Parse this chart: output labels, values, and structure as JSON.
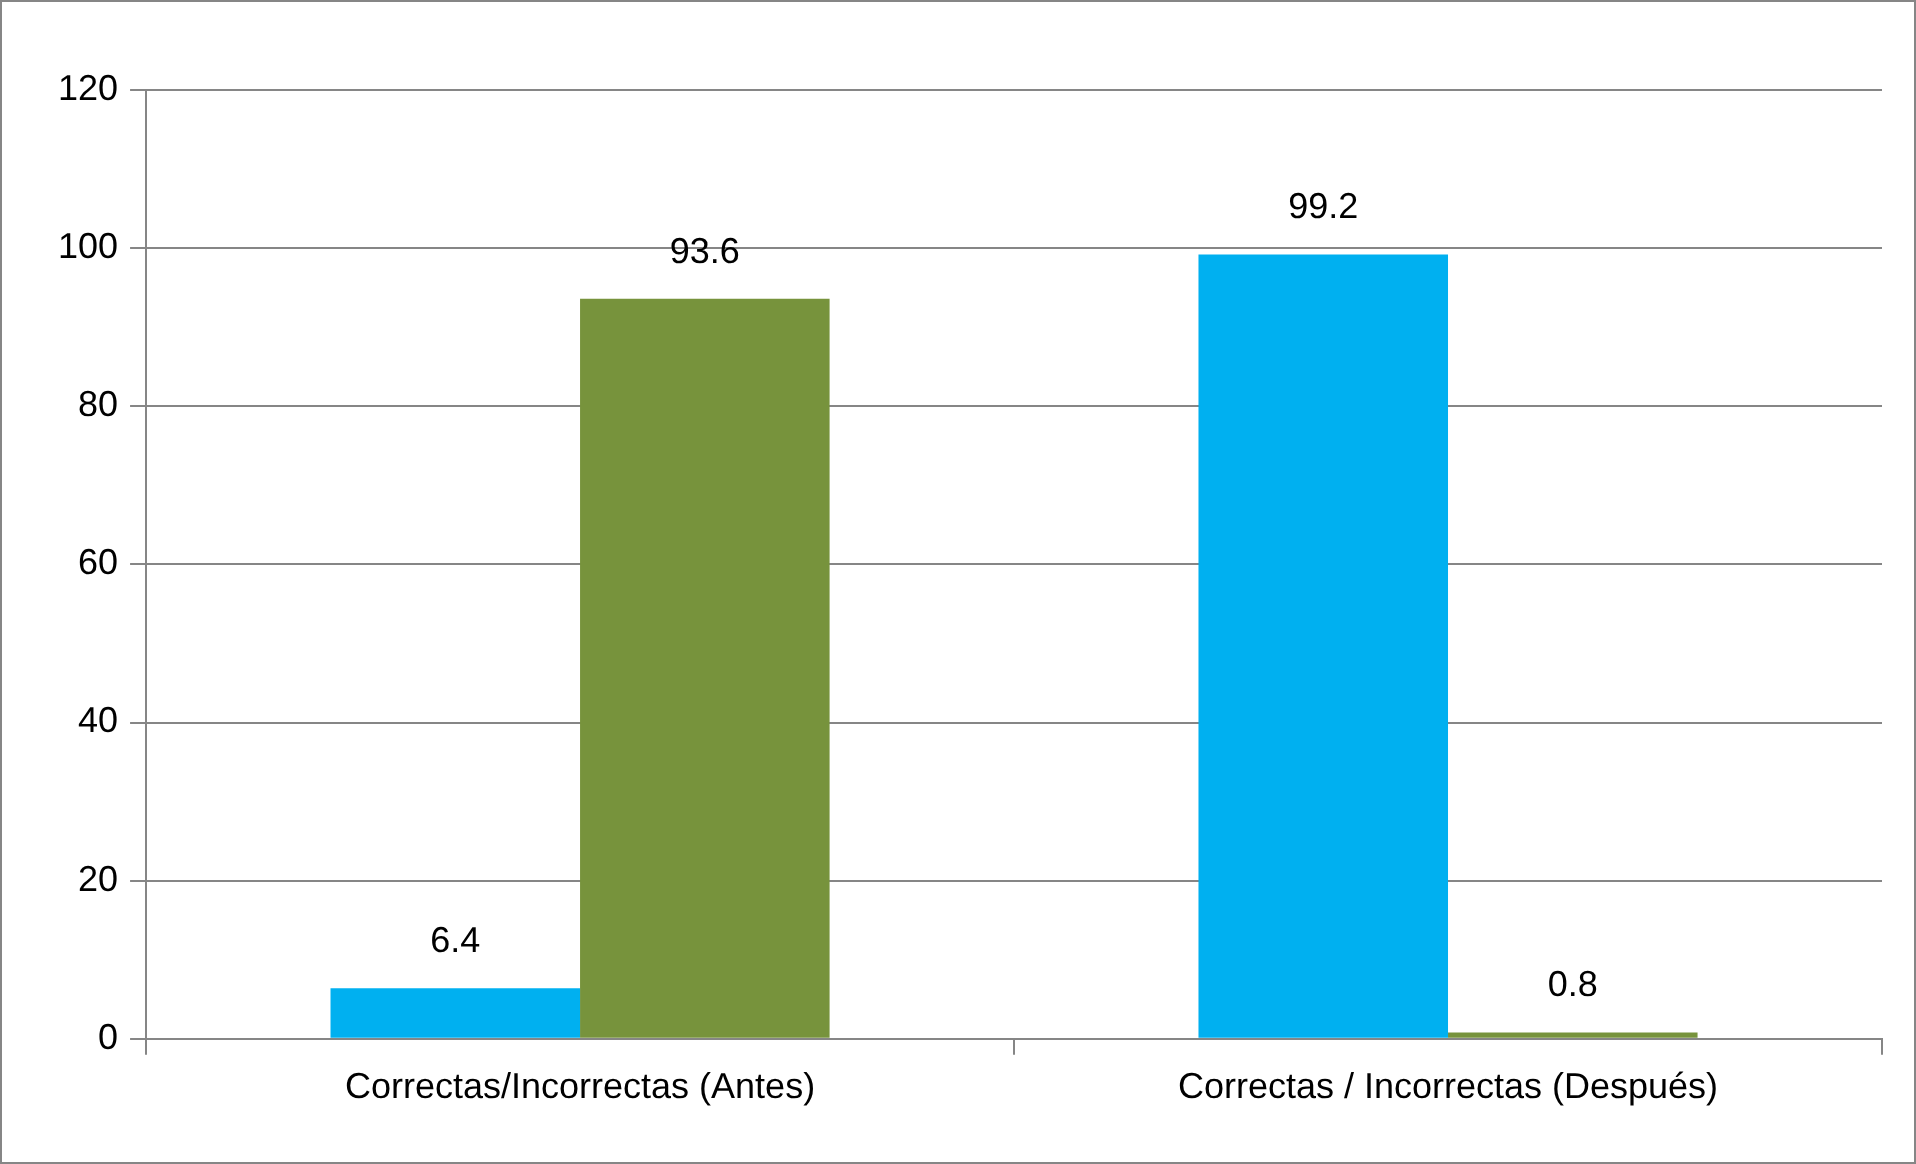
{
  "chart_data": {
    "type": "bar",
    "categories": [
      "Correctas/Incorrectas (Antes)",
      "Correctas / Incorrectas (Después)"
    ],
    "series": [
      {
        "color": "#00b0f0",
        "values": [
          6.4,
          99.2
        ]
      },
      {
        "color": "#77933c",
        "values": [
          93.6,
          0.8
        ]
      }
    ],
    "ylim": [
      0,
      120
    ],
    "yticks": [
      0,
      20,
      40,
      60,
      80,
      100,
      120
    ],
    "grid": "y",
    "legend": false,
    "data_labels": true
  }
}
